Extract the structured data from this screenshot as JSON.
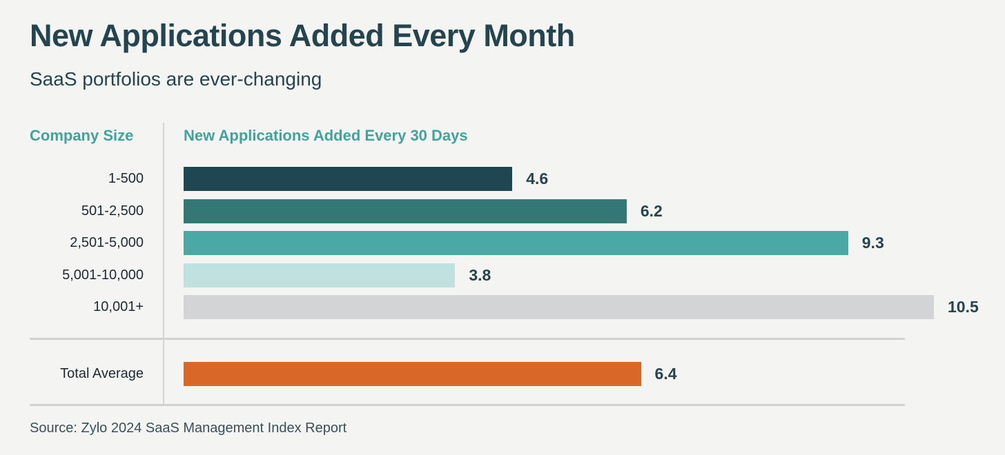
{
  "page": {
    "title": "New Applications Added Every Month",
    "subtitle": "SaaS portfolios are ever-changing",
    "source": "Source: Zylo 2024 SaaS Management Index Report",
    "background_color": "#f4f4f2",
    "title_color": "#24454f",
    "header_accent_color": "#40a39c"
  },
  "chart_data": {
    "type": "bar",
    "orientation": "horizontal",
    "title": "New Applications Added Every Month",
    "subtitle": "SaaS portfolios are ever-changing",
    "col_header_left": "Company Size",
    "col_header_right": "New Applications Added Every 30 Days",
    "categories": [
      "1-500",
      "501-2,500",
      "2,501-5,000",
      "5,001-10,000",
      "10,001+"
    ],
    "values": [
      4.6,
      6.2,
      9.3,
      3.8,
      10.5
    ],
    "bar_colors": [
      "#1e4752",
      "#337875",
      "#4aa9a2",
      "#bfe2e0",
      "#d3d4d6"
    ],
    "total": {
      "label": "Total Average",
      "value": 6.4,
      "color": "#d96828"
    },
    "xmax": 10.5,
    "value_label_color": "#24454f",
    "grid": false,
    "legend": false
  }
}
